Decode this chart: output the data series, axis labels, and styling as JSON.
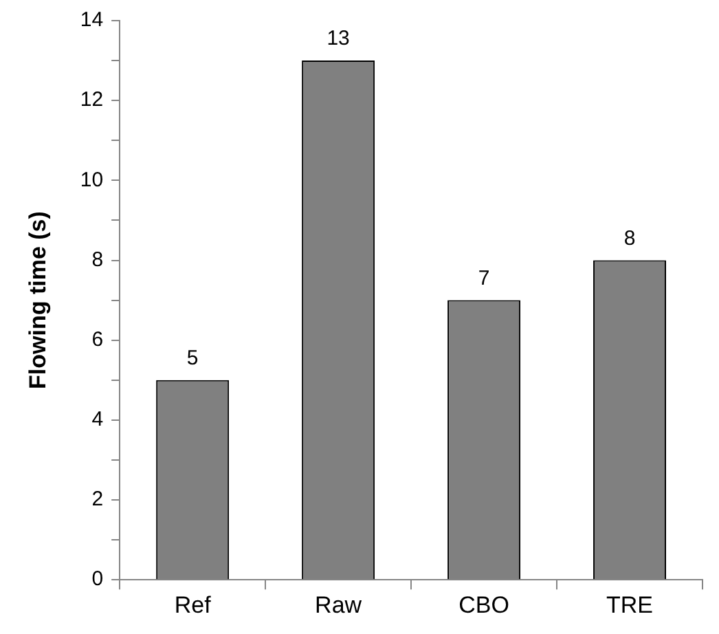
{
  "chart_data": {
    "type": "bar",
    "ylabel": "Flowing time (s)",
    "categories": [
      "Ref",
      "Raw",
      "CBO",
      "TRE"
    ],
    "values": [
      5,
      13,
      7,
      8
    ],
    "color": "#808080",
    "ylim": [
      0,
      14
    ],
    "yticks": [
      0,
      {
        "value": 1,
        "label": null
      },
      2,
      {
        "value": 3,
        "label": null
      },
      4,
      {
        "value": 5,
        "label": null
      },
      6,
      {
        "value": 7,
        "label": null
      },
      8,
      {
        "value": 9,
        "label": null
      },
      10,
      {
        "value": 11,
        "label": null
      },
      12,
      {
        "value": 13,
        "label": null
      },
      14
    ],
    "data_labels": true,
    "grid": false,
    "legend": false
  }
}
